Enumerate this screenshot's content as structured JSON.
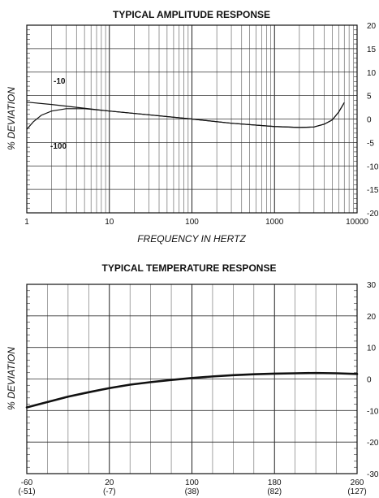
{
  "chart_data": [
    {
      "type": "line",
      "title": "TYPICAL AMPLITUDE RESPONSE",
      "xlabel": "FREQUENCY IN HERTZ",
      "ylabel": "% DEVIATION",
      "xscale": "log",
      "xlim": [
        1,
        10000
      ],
      "ylim": [
        -20,
        20
      ],
      "grid": true,
      "x_tick_labels": [
        "1",
        "10",
        "100",
        "1000",
        "10000"
      ],
      "y_tick_labels": [
        "20",
        "15",
        "10",
        "5",
        "0",
        "-5",
        "-10",
        "-15",
        "-20"
      ],
      "series": [
        {
          "name": "-10",
          "points": [
            [
              1,
              3.6
            ],
            [
              2,
              3.1
            ],
            [
              5,
              2.3
            ],
            [
              10,
              1.7
            ],
            [
              30,
              0.9
            ],
            [
              100,
              0.0
            ],
            [
              300,
              -0.9
            ],
            [
              1000,
              -1.6
            ],
            [
              2000,
              -1.8
            ],
            [
              3000,
              -1.7
            ],
            [
              4000,
              -1.1
            ],
            [
              5000,
              -0.2
            ],
            [
              6000,
              1.5
            ],
            [
              7000,
              3.5
            ]
          ]
        },
        {
          "name": "-100",
          "points": [
            [
              1,
              -2.2
            ],
            [
              1.2,
              -0.6
            ],
            [
              1.5,
              0.8
            ],
            [
              2,
              1.7
            ],
            [
              3,
              2.2
            ],
            [
              5,
              2.2
            ],
            [
              10,
              1.7
            ],
            [
              30,
              0.9
            ],
            [
              100,
              0.0
            ],
            [
              300,
              -0.9
            ],
            [
              1000,
              -1.6
            ],
            [
              2000,
              -1.8
            ],
            [
              3000,
              -1.7
            ],
            [
              4000,
              -1.1
            ],
            [
              5000,
              -0.2
            ],
            [
              6000,
              1.5
            ],
            [
              7000,
              3.5
            ]
          ]
        }
      ]
    },
    {
      "type": "line",
      "title": "TYPICAL TEMPERATURE RESPONSE",
      "xlabel": "",
      "ylabel": "% DEVIATION",
      "xlim": [
        -60,
        260
      ],
      "ylim": [
        -30,
        30
      ],
      "grid": true,
      "x_tick_labels": [
        {
          "f": "-60",
          "c": "(-51)"
        },
        {
          "f": "20",
          "c": "(-7)"
        },
        {
          "f": "100",
          "c": "(38)"
        },
        {
          "f": "180",
          "c": "(82)"
        },
        {
          "f": "260",
          "c": "(127)"
        }
      ],
      "y_tick_labels": [
        "30",
        "20",
        "10",
        "0",
        "-10",
        "-20",
        "-30"
      ],
      "series": [
        {
          "points": [
            [
              -60,
              -9
            ],
            [
              -40,
              -7.3
            ],
            [
              -20,
              -5.6
            ],
            [
              0,
              -4.2
            ],
            [
              20,
              -2.9
            ],
            [
              40,
              -1.8
            ],
            [
              60,
              -1.0
            ],
            [
              80,
              -0.3
            ],
            [
              100,
              0.3
            ],
            [
              120,
              0.8
            ],
            [
              140,
              1.2
            ],
            [
              160,
              1.5
            ],
            [
              180,
              1.7
            ],
            [
              200,
              1.8
            ],
            [
              220,
              1.9
            ],
            [
              240,
              1.8
            ],
            [
              260,
              1.6
            ]
          ]
        }
      ]
    }
  ]
}
